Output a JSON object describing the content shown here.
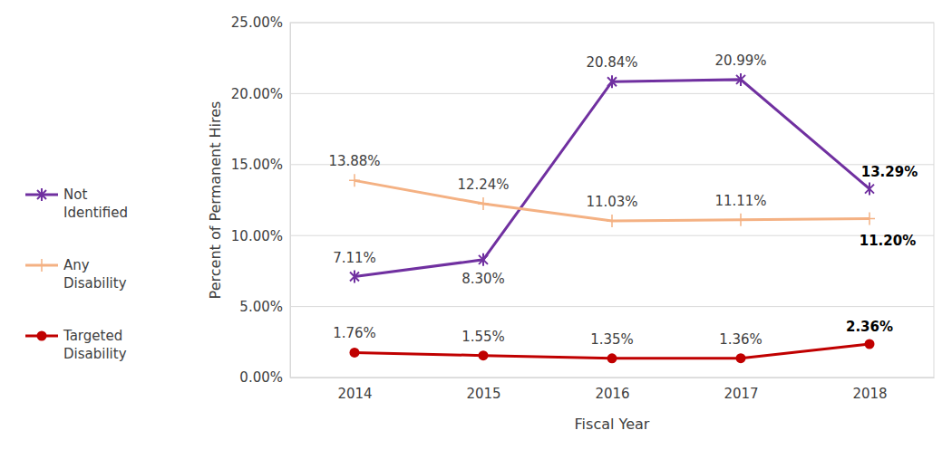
{
  "chart_data": {
    "type": "line",
    "x_label": "Fiscal Year",
    "y_label": "Percent of Permanent Hires",
    "categories": [
      "2014",
      "2015",
      "2016",
      "2017",
      "2018"
    ],
    "series": [
      {
        "name": "Not Identified",
        "color": "#7030a0",
        "marker": "asterisk",
        "values": [
          7.11,
          8.3,
          20.84,
          20.99,
          13.29
        ],
        "value_labels": [
          "7.11%",
          "8.30%",
          "20.84%",
          "20.99%",
          "13.29%"
        ]
      },
      {
        "name": "Any Disability",
        "color": "#f4b183",
        "marker": "plus",
        "values": [
          13.88,
          12.24,
          11.03,
          11.11,
          11.2
        ],
        "value_labels": [
          "13.88%",
          "12.24%",
          "11.03%",
          "11.11%",
          "11.20%"
        ]
      },
      {
        "name": "Targeted Disability",
        "color": "#c00000",
        "marker": "circle",
        "values": [
          1.76,
          1.55,
          1.35,
          1.36,
          2.36
        ],
        "value_labels": [
          "1.76%",
          "1.55%",
          "1.35%",
          "1.36%",
          "2.36%"
        ]
      }
    ],
    "ylim": [
      0,
      25
    ],
    "yticks": [
      {
        "value": 0,
        "label": "0.00%"
      },
      {
        "value": 5,
        "label": "5.00%"
      },
      {
        "value": 10,
        "label": "10.00%"
      },
      {
        "value": 15,
        "label": "15.00%"
      },
      {
        "value": 20,
        "label": "20.00%"
      },
      {
        "value": 25,
        "label": "25.00%"
      }
    ],
    "grid": true,
    "legend": "left",
    "data_labels": true
  }
}
